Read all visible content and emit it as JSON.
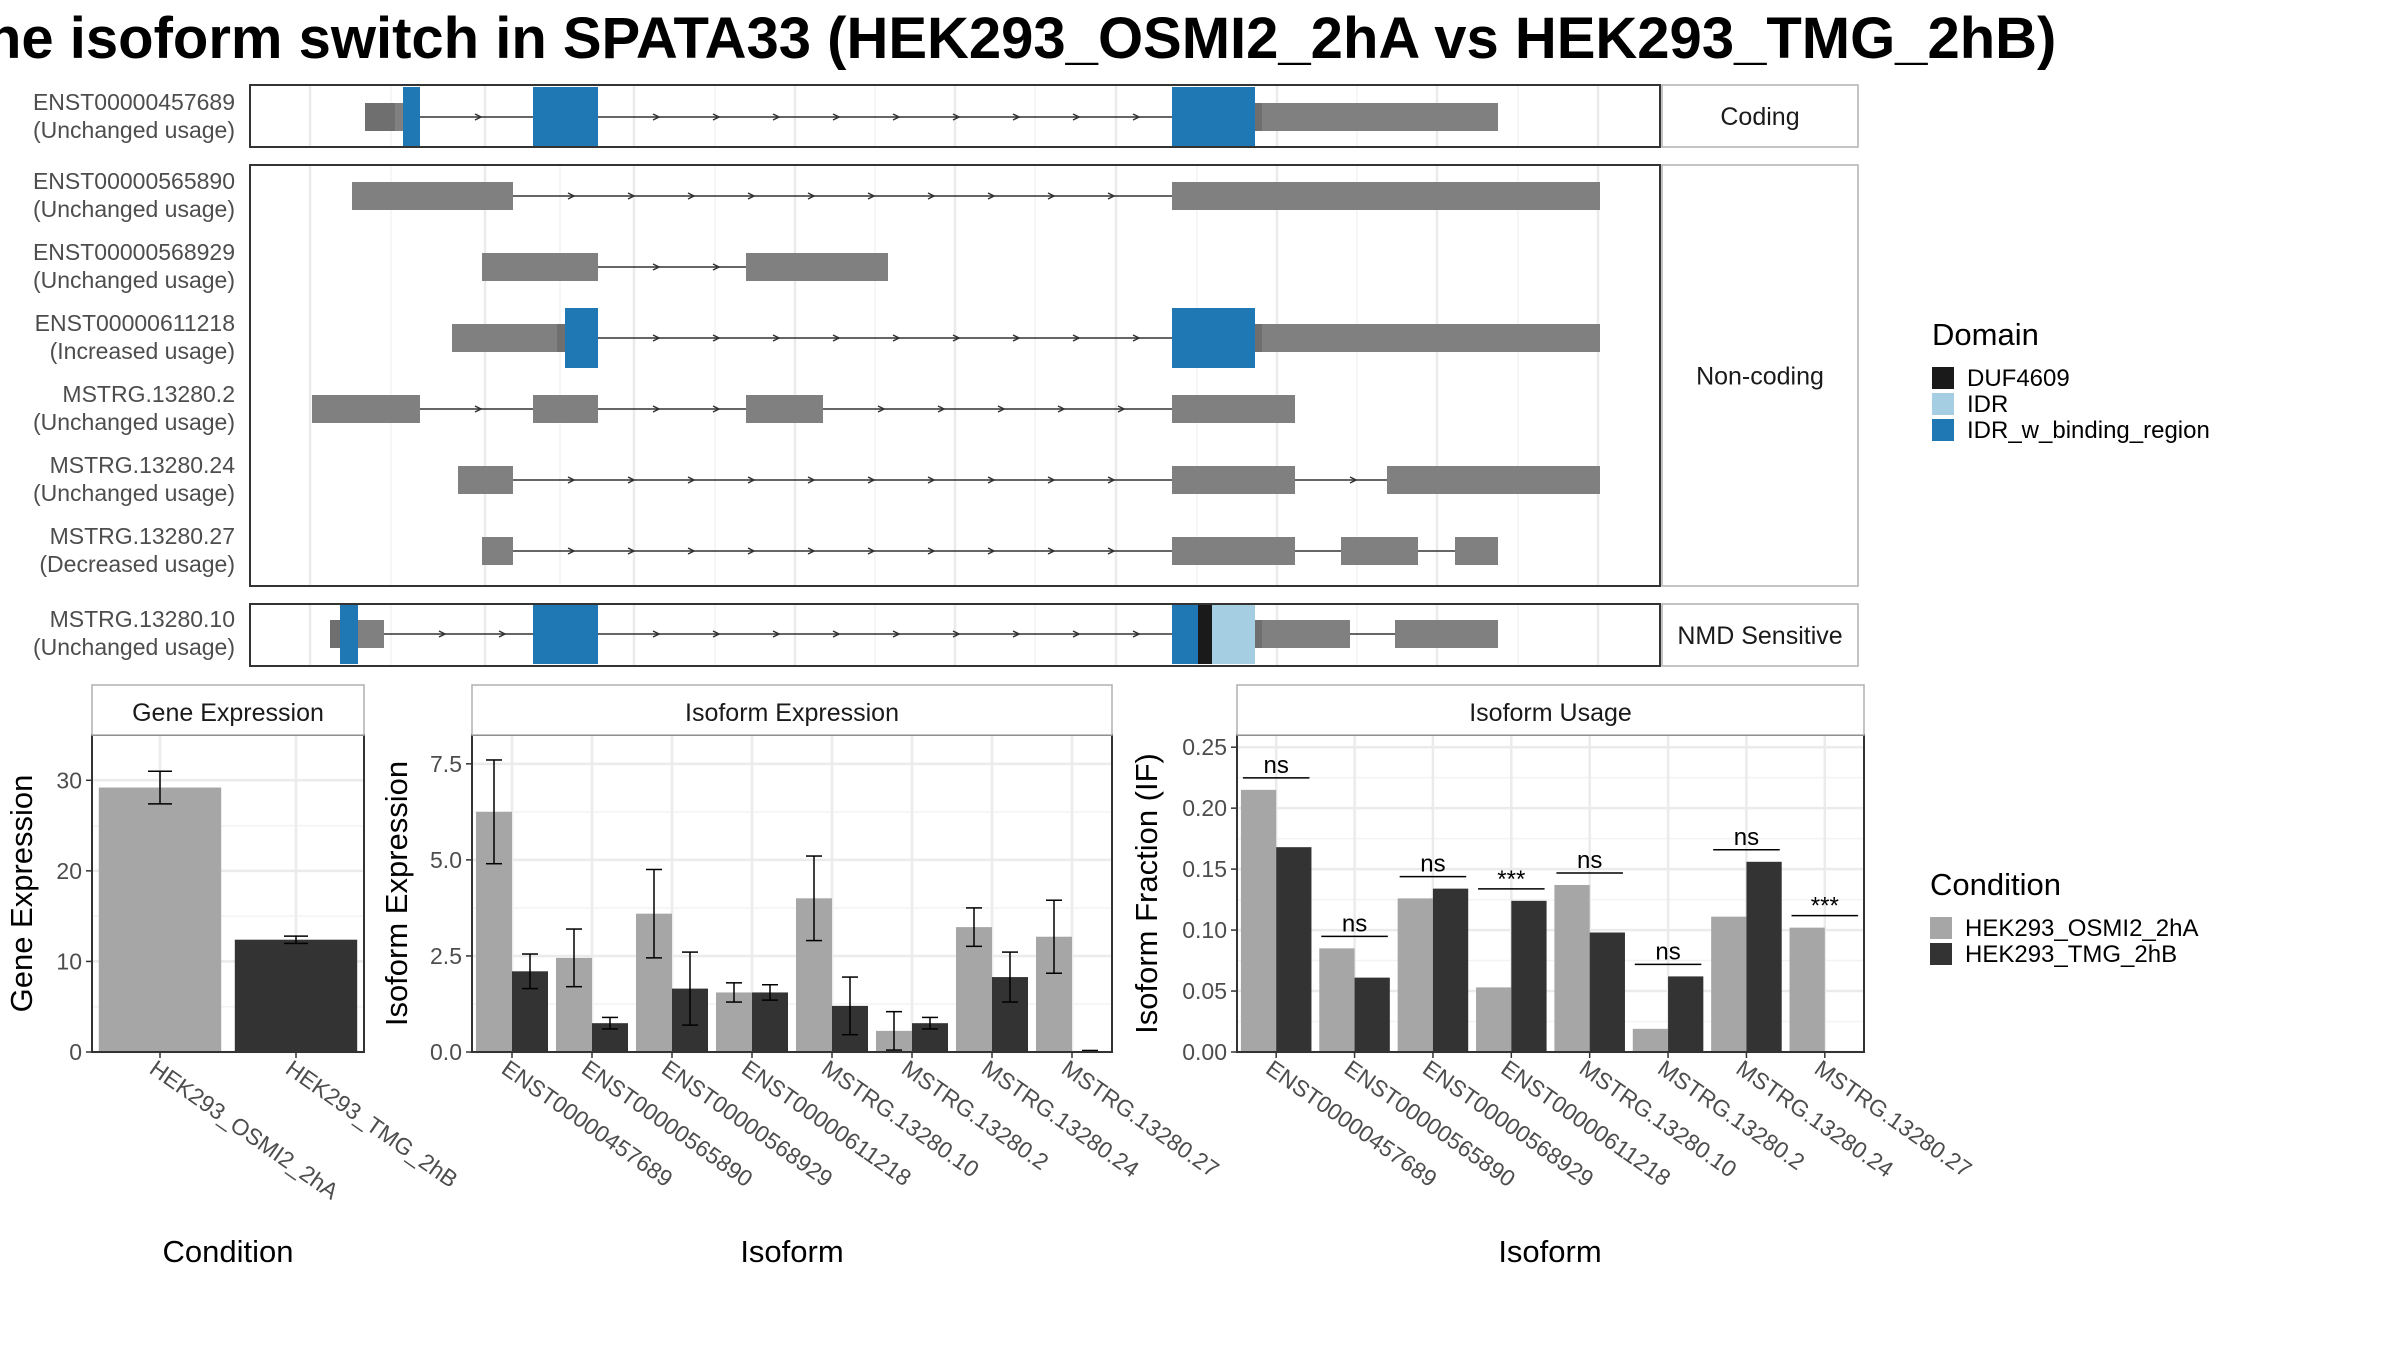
{
  "title": "he isoform switch in SPATA33 (HEK293_OSMI2_2hA vs HEK293_TMG_2hB)",
  "colors": {
    "exon": "#808080",
    "cond_a": "#a6a6a6",
    "cond_b": "#333333",
    "DUF4609": "#1a1a1a",
    "IDR": "#a6cee3",
    "IDR_w_binding_region": "#1f78b4"
  },
  "transcripts": {
    "groups": [
      {
        "label": "Coding",
        "rows": [
          {
            "id": "ENST00000457689",
            "usage": "(Unchanged usage)"
          }
        ]
      },
      {
        "label": "Non-coding",
        "rows": [
          {
            "id": "ENST00000565890",
            "usage": "(Unchanged usage)"
          },
          {
            "id": "ENST00000568929",
            "usage": "(Unchanged usage)"
          },
          {
            "id": "ENST00000611218",
            "usage": "(Increased usage)"
          },
          {
            "id": "MSTRG.13280.2",
            "usage": "(Unchanged usage)"
          },
          {
            "id": "MSTRG.13280.24",
            "usage": "(Unchanged usage)"
          },
          {
            "id": "MSTRG.13280.27",
            "usage": "(Decreased usage)"
          }
        ]
      },
      {
        "label": "NMD Sensitive",
        "rows": [
          {
            "id": "MSTRG.13280.10",
            "usage": "(Unchanged usage)"
          }
        ]
      }
    ]
  },
  "legend_domain": {
    "title": "Domain",
    "items": [
      "DUF4609",
      "IDR",
      "IDR_w_binding_region"
    ]
  },
  "legend_condition": {
    "title": "Condition",
    "items": [
      "HEK293_OSMI2_2hA",
      "HEK293_TMG_2hB"
    ]
  },
  "chart_data": [
    {
      "type": "bar",
      "title": "Gene Expression",
      "xlabel": "Condition",
      "ylabel": "Gene Expression",
      "categories": [
        "HEK293_OSMI2_2hA",
        "HEK293_TMG_2hB"
      ],
      "values": [
        29.2,
        12.4
      ],
      "error_low": [
        27.4,
        12.0
      ],
      "error_high": [
        31.0,
        12.8
      ],
      "ylim": [
        0,
        35
      ],
      "yticks": [
        0,
        10,
        20,
        30
      ]
    },
    {
      "type": "bar",
      "title": "Isoform Expression",
      "xlabel": "Isoform",
      "ylabel": "Isoform Expression",
      "categories": [
        "ENST00000457689",
        "ENST00000565890",
        "ENST00000568929",
        "ENST00000611218",
        "MSTRG.13280.10",
        "MSTRG.13280.2",
        "MSTRG.13280.24",
        "MSTRG.13280.27"
      ],
      "series": [
        {
          "name": "HEK293_OSMI2_2hA",
          "values": [
            6.25,
            2.45,
            3.6,
            1.55,
            4.0,
            0.55,
            3.25,
            3.0
          ],
          "error_low": [
            4.9,
            1.7,
            2.45,
            1.3,
            2.9,
            0.05,
            2.75,
            2.05
          ],
          "error_high": [
            7.6,
            3.2,
            4.75,
            1.8,
            5.1,
            1.05,
            3.75,
            3.95
          ]
        },
        {
          "name": "HEK293_TMG_2hB",
          "values": [
            2.1,
            0.75,
            1.65,
            1.55,
            1.2,
            0.75,
            1.95,
            0.02
          ],
          "error_low": [
            1.65,
            0.6,
            0.7,
            1.35,
            0.45,
            0.6,
            1.3,
            0.0
          ],
          "error_high": [
            2.55,
            0.9,
            2.6,
            1.75,
            1.95,
            0.9,
            2.6,
            0.04
          ]
        }
      ],
      "ylim": [
        0,
        8.25
      ],
      "yticks": [
        0.0,
        2.5,
        5.0,
        7.5
      ],
      "ytick_labels": [
        "0.0",
        "2.5",
        "5.0",
        "7.5"
      ]
    },
    {
      "type": "bar",
      "title": "Isoform Usage",
      "xlabel": "Isoform",
      "ylabel": "Isoform Fraction (IF)",
      "categories": [
        "ENST00000457689",
        "ENST00000565890",
        "ENST00000568929",
        "ENST00000611218",
        "MSTRG.13280.10",
        "MSTRG.13280.2",
        "MSTRG.13280.24",
        "MSTRG.13280.27"
      ],
      "series": [
        {
          "name": "HEK293_OSMI2_2hA",
          "values": [
            0.215,
            0.085,
            0.126,
            0.053,
            0.137,
            0.019,
            0.111,
            0.102
          ]
        },
        {
          "name": "HEK293_TMG_2hB",
          "values": [
            0.168,
            0.061,
            0.134,
            0.124,
            0.098,
            0.062,
            0.156,
            0.0
          ]
        }
      ],
      "significance": [
        "ns",
        "ns",
        "ns",
        "***",
        "ns",
        "ns",
        "ns",
        "***"
      ],
      "ylim": [
        0,
        0.26
      ],
      "yticks": [
        0.0,
        0.05,
        0.1,
        0.15,
        0.2,
        0.25
      ],
      "ytick_labels": [
        "0.00",
        "0.05",
        "0.10",
        "0.15",
        "0.20",
        "0.25"
      ]
    }
  ]
}
